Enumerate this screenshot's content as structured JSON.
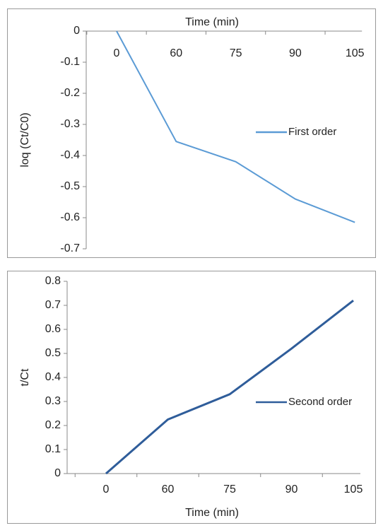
{
  "chart_data": [
    {
      "type": "line",
      "x_label": "Time (min)",
      "y_label": "loq (Ct/C0)",
      "categories": [
        "0",
        "60",
        "75",
        "90",
        "105"
      ],
      "series": [
        {
          "name": "First order",
          "color": "#5b9bd5",
          "values": [
            0,
            -0.355,
            -0.42,
            -0.54,
            -0.615
          ]
        }
      ],
      "ylim": [
        -0.7,
        0
      ],
      "yticks": [
        0,
        -0.1,
        -0.2,
        -0.3,
        -0.4,
        -0.5,
        -0.6,
        -0.7
      ],
      "x_axis_position": "top",
      "legend": "right"
    },
    {
      "type": "line",
      "x_label": "Time (min)",
      "y_label": "t/Ct",
      "categories": [
        "0",
        "60",
        "75",
        "90",
        "105"
      ],
      "series": [
        {
          "name": "Second order",
          "color": "#2f5d9a",
          "values": [
            0,
            0.225,
            0.33,
            0.52,
            0.72
          ]
        }
      ],
      "ylim": [
        0,
        0.8
      ],
      "yticks": [
        0,
        0.1,
        0.2,
        0.3,
        0.4,
        0.5,
        0.6,
        0.7,
        0.8
      ],
      "x_axis_position": "bottom",
      "legend": "right"
    }
  ]
}
